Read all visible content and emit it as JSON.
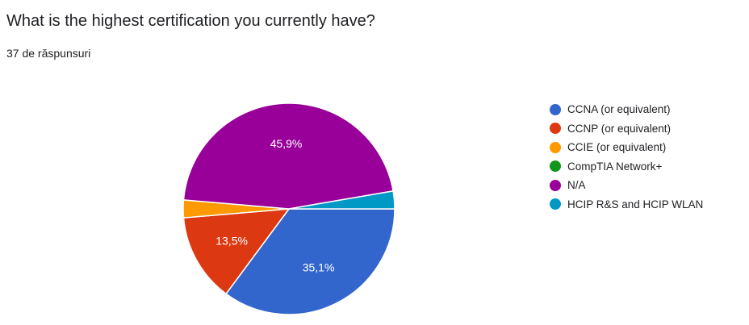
{
  "question_title": "What is the highest certification you currently have?",
  "response_count": "37 de răspunsuri",
  "chart_data": {
    "type": "pie",
    "title": "What is the highest certification you currently have?",
    "categories": [
      "CCNA (or equivalent)",
      "CCNP (or equivalent)",
      "CCIE (or equivalent)",
      "CompTIA Network+",
      "N/A",
      "HCIP R&S and HCIP WLAN"
    ],
    "values": [
      13,
      5,
      1,
      0,
      17,
      1
    ],
    "percent_labels": [
      "35,1%",
      "13,5%",
      "",
      "",
      "45,9%",
      ""
    ],
    "colors": [
      "#3366cc",
      "#dc3912",
      "#ff9900",
      "#109618",
      "#990099",
      "#0099c6"
    ],
    "legend_position": "right"
  }
}
